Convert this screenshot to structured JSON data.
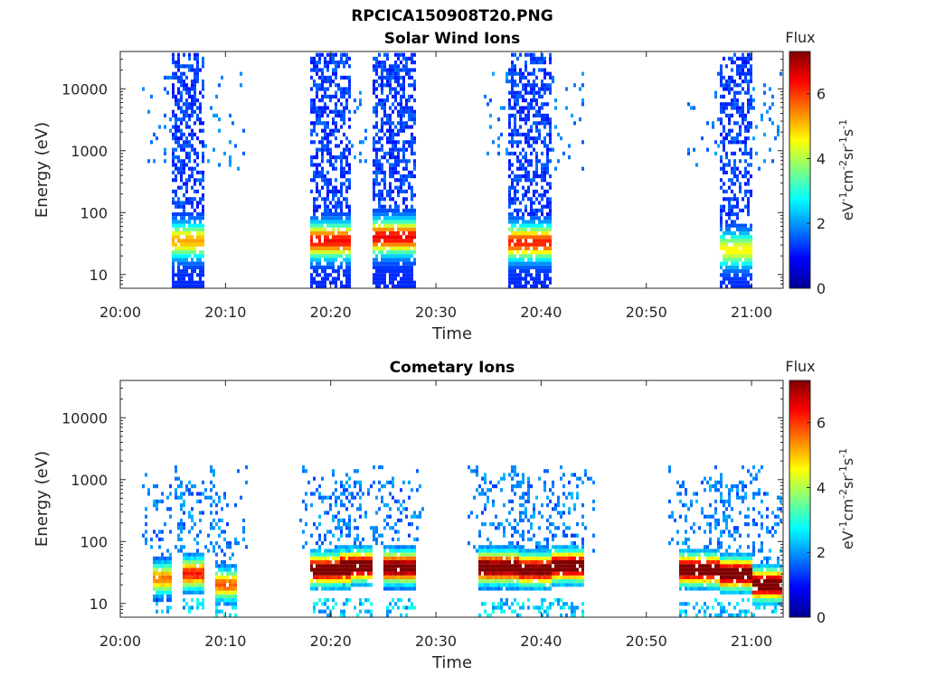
{
  "figure": {
    "title": "RPCICA150908T20.PNG"
  },
  "colormap": "jet",
  "chart_data": [
    {
      "type": "heatmap",
      "title": "Solar Wind Ions",
      "xlabel": "Time",
      "ylabel": "Energy (eV)",
      "xlim": [
        "20:00",
        "21:03"
      ],
      "ylim": [
        6,
        40000
      ],
      "yscale": "log",
      "x_ticks": [
        "20:00",
        "20:10",
        "20:20",
        "20:30",
        "20:40",
        "20:50",
        "21:00"
      ],
      "y_ticks": [
        "10",
        "100",
        "1000",
        "10000"
      ],
      "colorbar": {
        "title": "Flux",
        "label": "eV-1cm-2sr-1s-1",
        "range": [
          0,
          7.3
        ],
        "ticks": [
          "0",
          "2",
          "4",
          "6"
        ]
      },
      "bursts": [
        {
          "start": "20:05",
          "end": "20:08",
          "spread_start": "20:02",
          "spread_end": "20:12",
          "peak_energy_ev": 35,
          "peak_flux": 4.0
        },
        {
          "start": "20:18",
          "end": "20:22",
          "spread_start": "20:18",
          "spread_end": "20:23",
          "peak_energy_ev": 35,
          "peak_flux": 5.2
        },
        {
          "start": "20:24",
          "end": "20:28",
          "spread_start": "20:23",
          "spread_end": "20:28",
          "peak_energy_ev": 40,
          "peak_flux": 5.3
        },
        {
          "start": "20:37",
          "end": "20:41",
          "spread_start": "20:34",
          "spread_end": "20:44",
          "peak_energy_ev": 33,
          "peak_flux": 5.0
        },
        {
          "start": "20:57",
          "end": "21:00",
          "spread_start": "20:54",
          "spread_end": "21:03",
          "peak_energy_ev": 25,
          "peak_flux": 3.4
        }
      ]
    },
    {
      "type": "heatmap",
      "title": "Cometary Ions",
      "xlabel": "Time",
      "ylabel": "Energy (eV)",
      "xlim": [
        "20:00",
        "21:03"
      ],
      "ylim": [
        6,
        40000
      ],
      "yscale": "log",
      "x_ticks": [
        "20:00",
        "20:10",
        "20:20",
        "20:30",
        "20:40",
        "20:50",
        "21:00"
      ],
      "y_ticks": [
        "10",
        "100",
        "1000",
        "10000"
      ],
      "colorbar": {
        "title": "Flux",
        "label": "eV-1cm-2sr-1s-1",
        "range": [
          0,
          7.3
        ],
        "ticks": [
          "0",
          "2",
          "4",
          "6"
        ]
      },
      "bursts": [
        {
          "start": "20:03",
          "end": "20:05",
          "peak_energy_ev": 25,
          "peak_flux": 4.3
        },
        {
          "start": "20:06",
          "end": "20:08",
          "peak_energy_ev": 30,
          "peak_flux": 5.0
        },
        {
          "start": "20:09",
          "end": "20:11",
          "peak_energy_ev": 20,
          "peak_flux": 4.5
        },
        {
          "start": "20:18",
          "end": "20:22",
          "peak_energy_ev": 35,
          "peak_flux": 6.6
        },
        {
          "start": "20:21",
          "end": "20:24",
          "peak_energy_ev": 40,
          "peak_flux": 6.8
        },
        {
          "start": "20:25",
          "end": "20:28",
          "peak_energy_ev": 38,
          "peak_flux": 6.7
        },
        {
          "start": "20:34",
          "end": "20:38",
          "peak_energy_ev": 38,
          "peak_flux": 6.8
        },
        {
          "start": "20:38",
          "end": "20:41",
          "peak_energy_ev": 35,
          "peak_flux": 6.5
        },
        {
          "start": "20:41",
          "end": "20:44",
          "peak_energy_ev": 40,
          "peak_flux": 6.8
        },
        {
          "start": "20:53",
          "end": "20:57",
          "peak_energy_ev": 35,
          "peak_flux": 6.8
        },
        {
          "start": "20:57",
          "end": "21:00",
          "peak_energy_ev": 30,
          "peak_flux": 6.9
        },
        {
          "start": "21:00",
          "end": "21:03",
          "peak_energy_ev": 20,
          "peak_flux": 7.0
        }
      ]
    }
  ]
}
